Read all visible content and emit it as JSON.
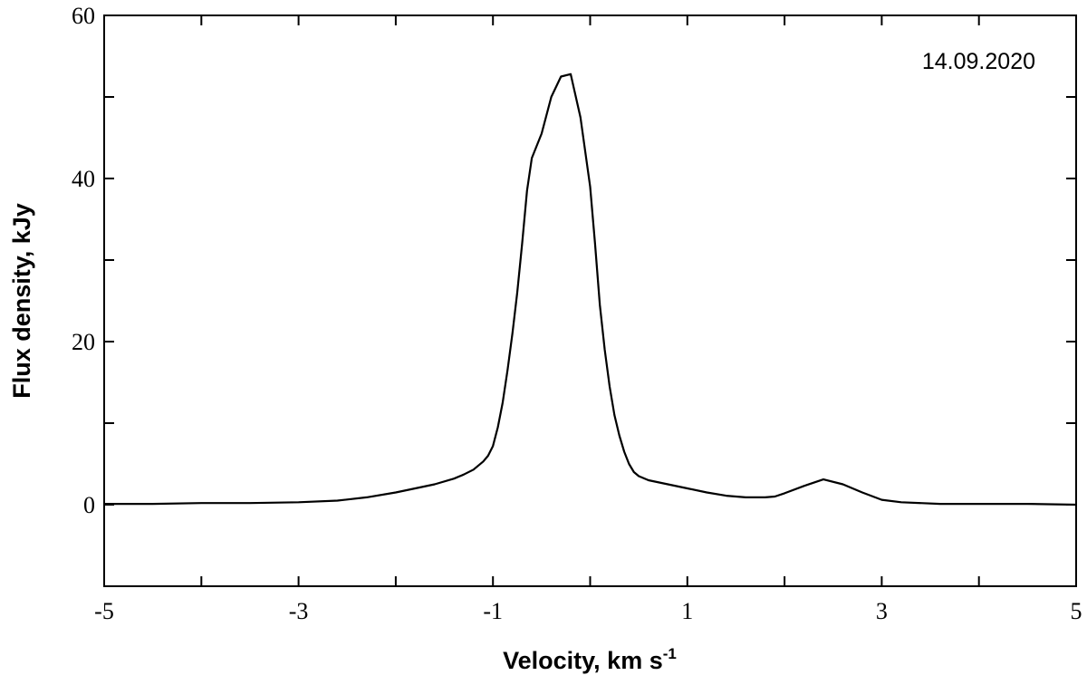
{
  "chart_data": {
    "type": "line",
    "xlabel": "Velocity, km s",
    "xlabel_superscript": "-1",
    "ylabel": "Flux density, kJy",
    "annotation": "14.09.2020",
    "xlim": [
      -5,
      5
    ],
    "ylim": [
      -10,
      60
    ],
    "x_tick_labels": [
      "-5",
      "-3",
      "-1",
      "1",
      "3",
      "5"
    ],
    "y_tick_labels": [
      "0",
      "20",
      "40",
      "60"
    ],
    "grid": false,
    "series": [
      {
        "color": "#000000",
        "x": [
          -5.0,
          -4.5,
          -4.0,
          -3.5,
          -3.0,
          -2.6,
          -2.3,
          -2.0,
          -1.8,
          -1.6,
          -1.4,
          -1.3,
          -1.2,
          -1.1,
          -1.05,
          -1.0,
          -0.95,
          -0.9,
          -0.85,
          -0.8,
          -0.75,
          -0.7,
          -0.65,
          -0.6,
          -0.5,
          -0.4,
          -0.3,
          -0.2,
          -0.1,
          0.0,
          0.05,
          0.1,
          0.15,
          0.2,
          0.25,
          0.3,
          0.35,
          0.4,
          0.45,
          0.5,
          0.6,
          0.8,
          1.0,
          1.2,
          1.4,
          1.6,
          1.8,
          1.9,
          2.0,
          2.2,
          2.4,
          2.6,
          2.8,
          3.0,
          3.2,
          3.6,
          4.0,
          4.5,
          5.0
        ],
        "y": [
          0.1,
          0.1,
          0.2,
          0.2,
          0.3,
          0.5,
          0.9,
          1.5,
          2.0,
          2.5,
          3.2,
          3.7,
          4.3,
          5.3,
          6.0,
          7.2,
          9.5,
          12.5,
          16.5,
          21.0,
          26.0,
          32.0,
          38.5,
          42.5,
          45.5,
          50.0,
          52.5,
          52.8,
          47.5,
          39.0,
          32.0,
          24.5,
          19.0,
          14.5,
          11.0,
          8.5,
          6.5,
          5.0,
          4.0,
          3.5,
          3.0,
          2.5,
          2.0,
          1.5,
          1.1,
          0.9,
          0.9,
          1.0,
          1.4,
          2.3,
          3.1,
          2.5,
          1.5,
          0.6,
          0.3,
          0.1,
          0.1,
          0.1,
          0.0
        ]
      }
    ]
  }
}
